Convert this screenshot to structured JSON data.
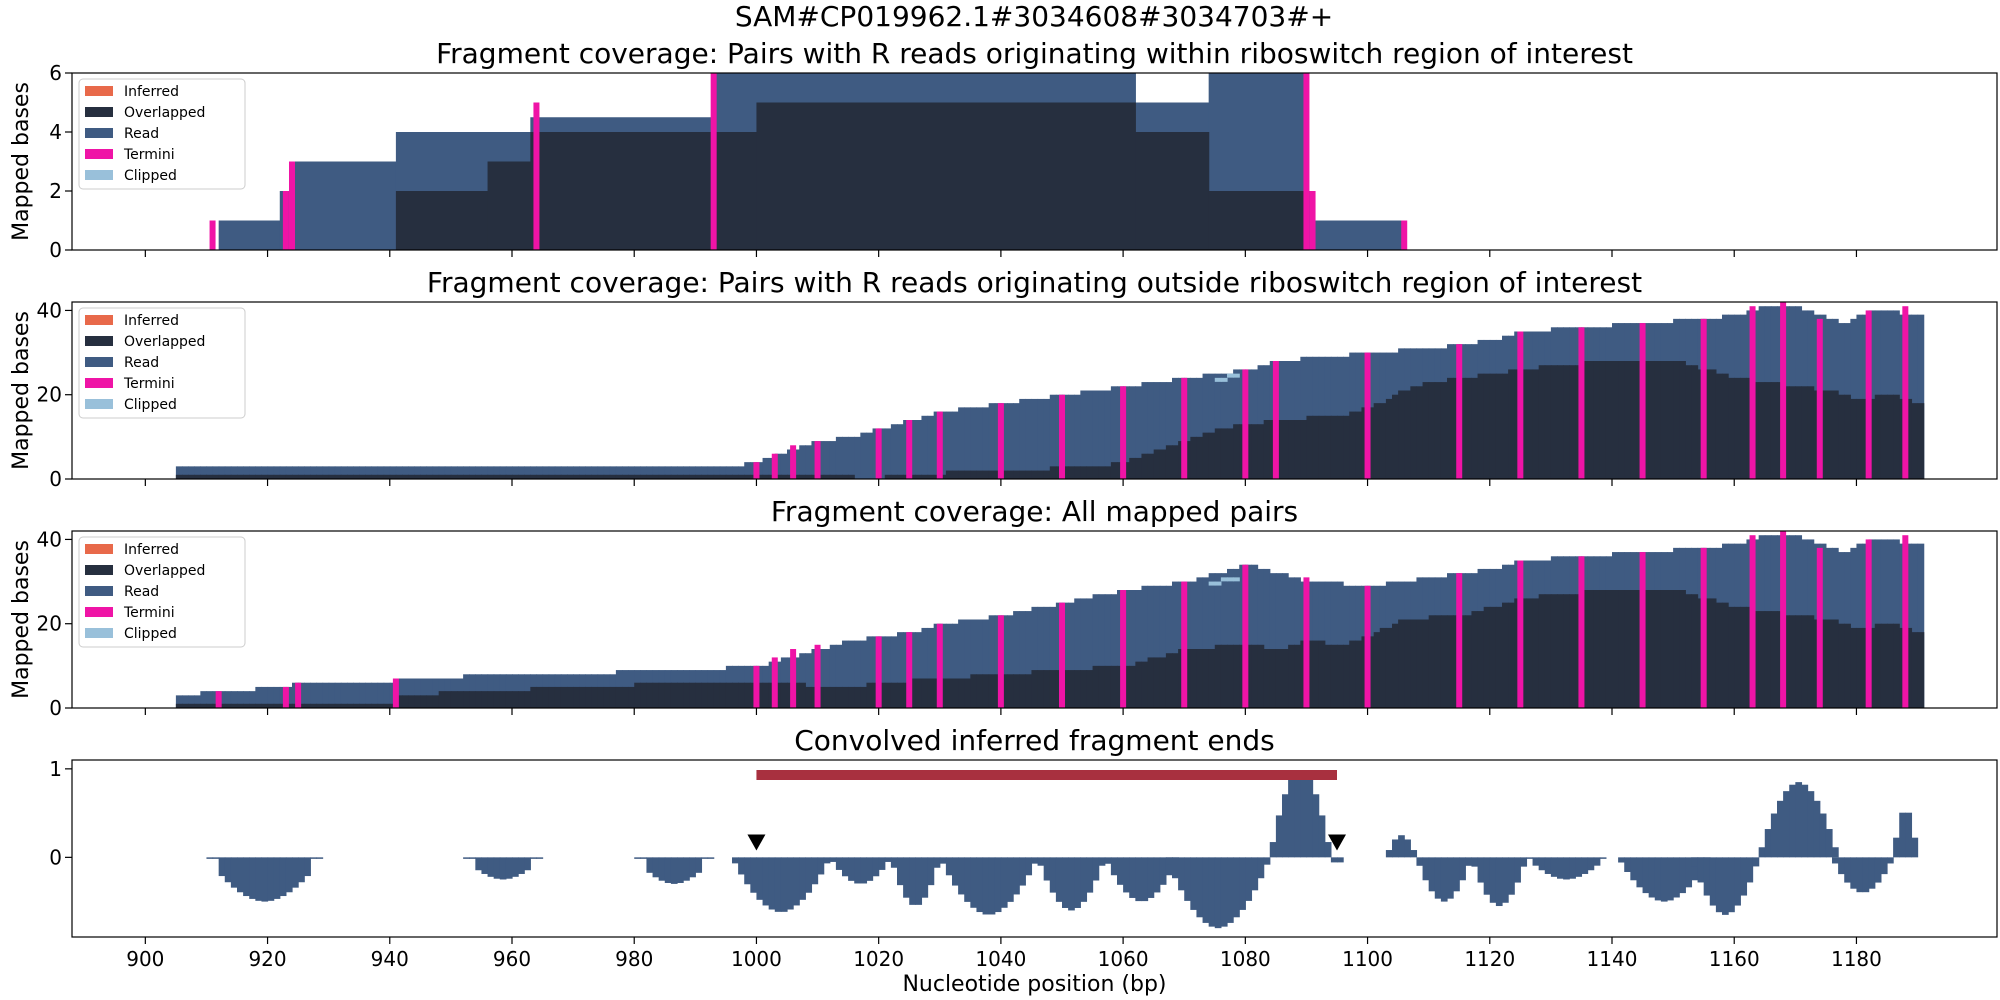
{
  "figure": {
    "suptitle": "SAM#CP019962.1#3034608#3034703#+"
  },
  "colors": {
    "inferred": "#e8694a",
    "overlapped": "#262f3f",
    "read": "#3f5b82",
    "termini": "#ef14a6",
    "clipped": "#99c0da",
    "region_bar": "#a8303f",
    "marker": "#000000"
  },
  "legend_labels": [
    "Inferred",
    "Overlapped",
    "Read",
    "Termini",
    "Clipped"
  ],
  "chart_data": [
    {
      "type": "area",
      "title": "Fragment coverage: Pairs with R reads originating within riboswitch region of interest",
      "ylabel": "Mapped bases",
      "xlim": [
        888,
        1203
      ],
      "ylim": [
        0,
        6
      ],
      "yticks": [
        0,
        2,
        4,
        6
      ],
      "legend": "top-left",
      "series": [
        {
          "name": "Overlapped",
          "steps": [
            [
              941,
              1,
              0
            ],
            [
              941,
              956,
              2
            ],
            [
              956,
              963,
              3
            ],
            [
              963,
              1000,
              4
            ],
            [
              1000,
              1062,
              5
            ],
            [
              1062,
              1074,
              4
            ],
            [
              1074,
              1090,
              2
            ]
          ]
        },
        {
          "name": "Read",
          "steps": [
            [
              912,
              922,
              1
            ],
            [
              922,
              924,
              2
            ],
            [
              924,
              941,
              3
            ],
            [
              941,
              963,
              4
            ],
            [
              963,
              993,
              4.5
            ],
            [
              993,
              1062,
              6
            ],
            [
              1062,
              1074,
              5
            ],
            [
              1074,
              1090,
              6
            ],
            [
              1090,
              1091,
              2
            ],
            [
              1091,
              1106,
              1
            ]
          ]
        },
        {
          "name": "Termini",
          "edges": [
            [
              911,
              1
            ],
            [
              923,
              2
            ],
            [
              924,
              3
            ],
            [
              964,
              5
            ],
            [
              993,
              6
            ],
            [
              1090,
              6
            ],
            [
              1091,
              2
            ],
            [
              1106,
              1
            ]
          ]
        }
      ]
    },
    {
      "type": "area",
      "title": "Fragment coverage: Pairs with R reads originating outside riboswitch region of interest",
      "ylabel": "Mapped bases",
      "xlim": [
        888,
        1203
      ],
      "ylim": [
        0,
        42
      ],
      "yticks": [
        0,
        20,
        40
      ],
      "legend": "top-left",
      "series": [
        {
          "name": "Overlapped",
          "points": [
            [
              905,
              1
            ],
            [
              950,
              1
            ],
            [
              990,
              1
            ],
            [
              1005,
              1
            ],
            [
              1015,
              1
            ],
            [
              1016,
              0
            ],
            [
              1020,
              0
            ],
            [
              1021,
              1
            ],
            [
              1040,
              2
            ],
            [
              1055,
              3
            ],
            [
              1060,
              4
            ],
            [
              1065,
              7
            ],
            [
              1070,
              9
            ],
            [
              1075,
              12
            ],
            [
              1085,
              14
            ],
            [
              1095,
              15
            ],
            [
              1098,
              16
            ],
            [
              1102,
              18
            ],
            [
              1105,
              21
            ],
            [
              1110,
              23
            ],
            [
              1115,
              24
            ],
            [
              1120,
              25
            ],
            [
              1125,
              26
            ],
            [
              1130,
              27
            ],
            [
              1140,
              28
            ],
            [
              1150,
              28
            ],
            [
              1155,
              26
            ],
            [
              1160,
              24
            ],
            [
              1165,
              23
            ],
            [
              1170,
              22
            ],
            [
              1175,
              21
            ],
            [
              1180,
              19
            ],
            [
              1185,
              20
            ],
            [
              1190,
              18
            ]
          ]
        },
        {
          "name": "Read",
          "points": [
            [
              905,
              3
            ],
            [
              995,
              3
            ],
            [
              1000,
              4
            ],
            [
              1005,
              7
            ],
            [
              1010,
              9
            ],
            [
              1015,
              10
            ],
            [
              1020,
              12
            ],
            [
              1025,
              14
            ],
            [
              1030,
              16
            ],
            [
              1040,
              18
            ],
            [
              1050,
              20
            ],
            [
              1060,
              22
            ],
            [
              1070,
              24
            ],
            [
              1080,
              26
            ],
            [
              1085,
              28
            ],
            [
              1100,
              30
            ],
            [
              1110,
              31
            ],
            [
              1115,
              32
            ],
            [
              1120,
              33
            ],
            [
              1125,
              35
            ],
            [
              1135,
              36
            ],
            [
              1145,
              37
            ],
            [
              1155,
              38
            ],
            [
              1160,
              39
            ],
            [
              1165,
              41
            ],
            [
              1170,
              41
            ],
            [
              1175,
              38
            ],
            [
              1178,
              37
            ],
            [
              1182,
              40
            ],
            [
              1190,
              39
            ]
          ]
        },
        {
          "name": "Clipped",
          "points": [
            [
              1075,
              24
            ],
            [
              1078,
              25
            ]
          ]
        },
        {
          "name": "Termini",
          "edges": [
            [
              1000,
              4
            ],
            [
              1003,
              6
            ],
            [
              1006,
              8
            ],
            [
              1010,
              9
            ],
            [
              1020,
              12
            ],
            [
              1025,
              14
            ],
            [
              1030,
              16
            ],
            [
              1040,
              18
            ],
            [
              1050,
              20
            ],
            [
              1060,
              22
            ],
            [
              1070,
              24
            ],
            [
              1080,
              26
            ],
            [
              1085,
              28
            ],
            [
              1100,
              30
            ],
            [
              1115,
              32
            ],
            [
              1125,
              35
            ],
            [
              1135,
              36
            ],
            [
              1145,
              37
            ],
            [
              1155,
              38
            ],
            [
              1163,
              41
            ],
            [
              1168,
              42
            ],
            [
              1174,
              38
            ],
            [
              1182,
              40
            ],
            [
              1188,
              41
            ]
          ]
        }
      ]
    },
    {
      "type": "area",
      "title": "Fragment coverage: All mapped pairs",
      "ylabel": "Mapped bases",
      "xlim": [
        888,
        1203
      ],
      "ylim": [
        0,
        42
      ],
      "yticks": [
        0,
        20,
        40
      ],
      "legend": "top-left",
      "series": [
        {
          "name": "Overlapped",
          "points": [
            [
              905,
              1
            ],
            [
              940,
              1
            ],
            [
              941,
              3
            ],
            [
              955,
              4
            ],
            [
              970,
              5
            ],
            [
              990,
              6
            ],
            [
              1000,
              6
            ],
            [
              1015,
              5
            ],
            [
              1020,
              6
            ],
            [
              1030,
              7
            ],
            [
              1040,
              8
            ],
            [
              1050,
              9
            ],
            [
              1060,
              10
            ],
            [
              1065,
              12
            ],
            [
              1070,
              14
            ],
            [
              1080,
              15
            ],
            [
              1085,
              14
            ],
            [
              1090,
              16
            ],
            [
              1095,
              15
            ],
            [
              1100,
              17
            ],
            [
              1105,
              21
            ],
            [
              1115,
              22
            ],
            [
              1120,
              24
            ],
            [
              1125,
              26
            ],
            [
              1130,
              27
            ],
            [
              1140,
              28
            ],
            [
              1150,
              28
            ],
            [
              1155,
              26
            ],
            [
              1160,
              24
            ],
            [
              1165,
              23
            ],
            [
              1170,
              22
            ],
            [
              1175,
              21
            ],
            [
              1180,
              19
            ],
            [
              1185,
              20
            ],
            [
              1190,
              18
            ]
          ]
        },
        {
          "name": "Read",
          "points": [
            [
              905,
              3
            ],
            [
              912,
              4
            ],
            [
              923,
              5
            ],
            [
              925,
              6
            ],
            [
              940,
              6
            ],
            [
              941,
              7
            ],
            [
              963,
              8
            ],
            [
              990,
              9
            ],
            [
              1000,
              10
            ],
            [
              1005,
              12
            ],
            [
              1010,
              14
            ],
            [
              1015,
              16
            ],
            [
              1020,
              17
            ],
            [
              1025,
              18
            ],
            [
              1030,
              20
            ],
            [
              1040,
              22
            ],
            [
              1050,
              25
            ],
            [
              1060,
              28
            ],
            [
              1070,
              30
            ],
            [
              1080,
              34
            ],
            [
              1090,
              30
            ],
            [
              1100,
              29
            ],
            [
              1110,
              31
            ],
            [
              1115,
              32
            ],
            [
              1120,
              33
            ],
            [
              1125,
              35
            ],
            [
              1135,
              36
            ],
            [
              1145,
              37
            ],
            [
              1155,
              38
            ],
            [
              1160,
              39
            ],
            [
              1165,
              41
            ],
            [
              1170,
              41
            ],
            [
              1175,
              38
            ],
            [
              1178,
              37
            ],
            [
              1182,
              40
            ],
            [
              1190,
              39
            ]
          ]
        },
        {
          "name": "Clipped",
          "points": [
            [
              1074,
              30
            ],
            [
              1078,
              31
            ]
          ]
        },
        {
          "name": "Termini",
          "edges": [
            [
              912,
              4
            ],
            [
              923,
              5
            ],
            [
              925,
              6
            ],
            [
              941,
              7
            ],
            [
              1000,
              10
            ],
            [
              1003,
              12
            ],
            [
              1006,
              14
            ],
            [
              1010,
              15
            ],
            [
              1020,
              17
            ],
            [
              1025,
              18
            ],
            [
              1030,
              20
            ],
            [
              1040,
              22
            ],
            [
              1050,
              25
            ],
            [
              1060,
              28
            ],
            [
              1070,
              30
            ],
            [
              1080,
              34
            ],
            [
              1090,
              31
            ],
            [
              1100,
              29
            ],
            [
              1115,
              32
            ],
            [
              1125,
              35
            ],
            [
              1135,
              36
            ],
            [
              1145,
              37
            ],
            [
              1155,
              38
            ],
            [
              1163,
              41
            ],
            [
              1168,
              42
            ],
            [
              1174,
              38
            ],
            [
              1182,
              40
            ],
            [
              1188,
              41
            ]
          ]
        }
      ]
    },
    {
      "type": "bar",
      "title": "Convolved inferred fragment ends",
      "xlabel": "Nucleotide position (bp)",
      "xlim": [
        888,
        1203
      ],
      "ylim": [
        -0.9,
        1.1
      ],
      "yticks": [
        0,
        1
      ],
      "xticks": [
        900,
        920,
        940,
        960,
        980,
        1000,
        1020,
        1040,
        1060,
        1080,
        1100,
        1120,
        1140,
        1160,
        1180
      ],
      "region": {
        "start": 1000,
        "end": 1095,
        "y": 0.93
      },
      "markers": [
        {
          "x": 1000,
          "y": 0.1
        },
        {
          "x": 1095,
          "y": 0.1
        }
      ],
      "segments": [
        {
          "start": 910,
          "end": 929,
          "min": -0.5,
          "zero_tail": 2
        },
        {
          "start": 952,
          "end": 965,
          "min": -0.25,
          "zero_tail": 2
        },
        {
          "start": 980,
          "end": 993,
          "min": -0.3,
          "zero_tail": 2
        },
        {
          "start": 996,
          "end": 1012,
          "min": -0.62
        },
        {
          "start": 1012,
          "end": 1022,
          "min": -0.3
        },
        {
          "start": 1022,
          "end": 1030,
          "min": -0.55
        },
        {
          "start": 1030,
          "end": 1046,
          "min": -0.65
        },
        {
          "start": 1046,
          "end": 1057,
          "min": -0.6
        },
        {
          "start": 1057,
          "end": 1069,
          "min": -0.5
        },
        {
          "start": 1067,
          "end": 1084,
          "min": -0.8
        },
        {
          "start": 1084,
          "end": 1094,
          "max": 1.0
        },
        {
          "start": 1094,
          "end": 1096,
          "min": -0.08
        },
        {
          "start": 1103,
          "end": 1108,
          "max": 0.25
        },
        {
          "start": 1108,
          "end": 1117,
          "min": -0.5
        },
        {
          "start": 1117,
          "end": 1126,
          "min": -0.55
        },
        {
          "start": 1126,
          "end": 1139,
          "min": -0.25,
          "zero_tail": 1
        },
        {
          "start": 1141,
          "end": 1156,
          "min": -0.5
        },
        {
          "start": 1153,
          "end": 1164,
          "min": -0.65
        },
        {
          "start": 1164,
          "end": 1177,
          "max": 0.85
        },
        {
          "start": 1176,
          "end": 1186,
          "min": -0.4
        },
        {
          "start": 1186,
          "end": 1190,
          "max": 0.55
        }
      ]
    }
  ]
}
